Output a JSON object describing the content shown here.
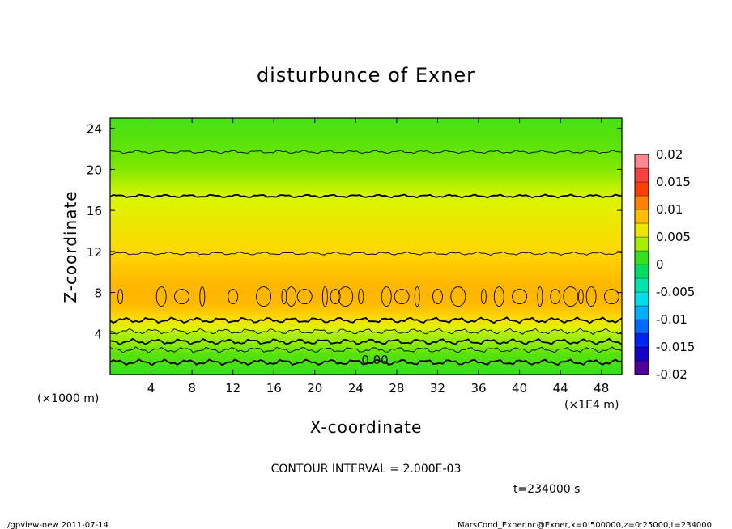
{
  "chart_data": {
    "type": "heatmap",
    "title": "disturbunce of Exner",
    "xlabel": "X-coordinate",
    "ylabel": "Z-coordinate",
    "x_unit_label": "(×1000 m)",
    "x_scale_label": "(×1E4 m)",
    "xlim": [
      0,
      50
    ],
    "ylim": [
      0,
      25
    ],
    "x_ticks": [
      "4",
      "8",
      "12",
      "16",
      "20",
      "24",
      "28",
      "32",
      "36",
      "40",
      "44",
      "48"
    ],
    "y_ticks": [
      "4",
      "8",
      "12",
      "16",
      "20",
      "24"
    ],
    "colorbar": {
      "ticks": [
        "0.02",
        "0.015",
        "0.01",
        "0.005",
        "0",
        "-0.005",
        "-0.01",
        "-0.015",
        "-0.02"
      ],
      "range": [
        -0.02,
        0.02
      ]
    },
    "contour_label": "0.00",
    "contour_interval_text": "CONTOUR INTERVAL = 2.000E-03",
    "time_text": "t=234000 s",
    "grid": false,
    "profile_z": [
      0,
      1,
      2,
      3,
      4,
      5,
      6,
      7,
      8,
      9,
      10,
      11,
      12,
      14,
      16,
      18,
      20,
      22,
      24,
      25
    ],
    "profile_value": [
      0.0012,
      0.0016,
      0.002,
      0.0032,
      0.004,
      0.006,
      0.008,
      0.009,
      0.0092,
      0.009,
      0.0085,
      0.008,
      0.0075,
      0.0065,
      0.0056,
      0.0045,
      0.003,
      0.0022,
      0.0018,
      0.0016
    ],
    "contour_levels_z": [
      1.2,
      2.4,
      3.2,
      4.2,
      5.3,
      11.8,
      17.4,
      21.7
    ]
  },
  "footer": {
    "left": "./gpview-new  2011-07-14",
    "right": "MarsCond_Exner.nc@Exner,x=0:500000,z=0:25000,t=234000"
  },
  "colors": {
    "background": "#ffffff",
    "axis": "#000000"
  }
}
